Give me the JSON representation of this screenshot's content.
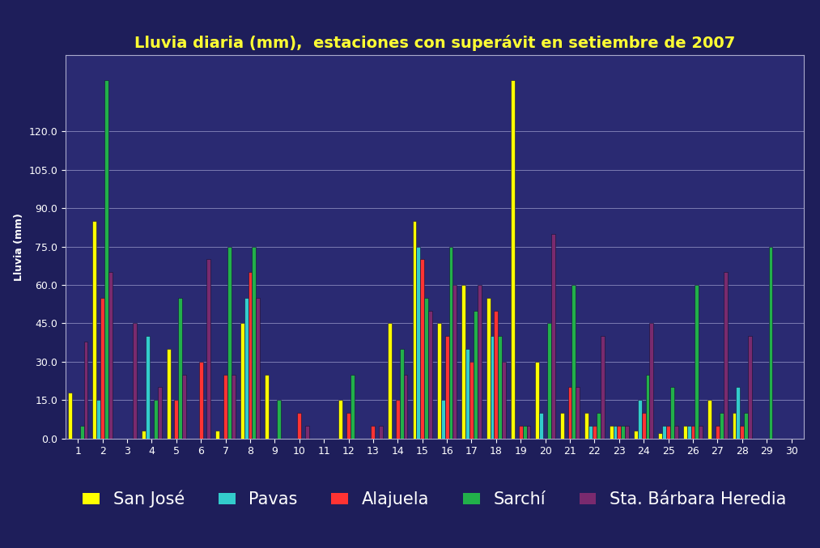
{
  "chart_data": {
    "type": "bar",
    "title": "Lluvia diaria (mm),  estaciones con superávit en setiembre de 2007",
    "y_label": "Lluvia (mm)",
    "categories": [
      "1",
      "2",
      "3",
      "4",
      "5",
      "6",
      "7",
      "8",
      "9",
      "10",
      "11",
      "12",
      "13",
      "14",
      "15",
      "16",
      "17",
      "18",
      "19",
      "20",
      "21",
      "22",
      "23",
      "24",
      "25",
      "26",
      "27",
      "28",
      "29",
      "30"
    ],
    "series": [
      {
        "name": "San José",
        "color": "#ffff00",
        "values": [
          18,
          85,
          0,
          3,
          35,
          0,
          3,
          45,
          25,
          0,
          0,
          15,
          0,
          45,
          85,
          45,
          60,
          55,
          140,
          30,
          10,
          10,
          5,
          3,
          2,
          5,
          15,
          10,
          0,
          0
        ]
      },
      {
        "name": "Pavas",
        "color": "#33cccc",
        "values": [
          0,
          15,
          0,
          40,
          0,
          0,
          0,
          55,
          0,
          0,
          0,
          0,
          0,
          0,
          75,
          15,
          35,
          40,
          0,
          10,
          0,
          5,
          5,
          15,
          5,
          5,
          0,
          20,
          0,
          0
        ]
      },
      {
        "name": "Alajuela",
        "color": "#ff3333",
        "values": [
          0,
          55,
          0,
          0,
          15,
          30,
          25,
          65,
          0,
          10,
          0,
          10,
          5,
          15,
          70,
          40,
          30,
          50,
          5,
          0,
          20,
          5,
          5,
          10,
          5,
          5,
          5,
          5,
          0,
          0
        ]
      },
      {
        "name": "Sarchí",
        "color": "#22b04a",
        "values": [
          5,
          140,
          0,
          15,
          55,
          0,
          75,
          75,
          15,
          0,
          0,
          25,
          0,
          35,
          55,
          75,
          50,
          40,
          5,
          45,
          60,
          10,
          5,
          25,
          20,
          60,
          10,
          10,
          75,
          0
        ]
      },
      {
        "name": "Sta. Bárbara Heredia",
        "color": "#7a2a6e",
        "values": [
          38,
          65,
          45,
          20,
          25,
          70,
          25,
          55,
          0,
          5,
          0,
          0,
          5,
          25,
          50,
          60,
          60,
          30,
          5,
          80,
          20,
          40,
          5,
          45,
          5,
          5,
          65,
          40,
          0,
          0
        ]
      }
    ],
    "ylim": [
      0,
      150
    ],
    "yticks": [
      {
        "value": 0,
        "label": "0.0"
      },
      {
        "value": 15,
        "label": "15.0"
      },
      {
        "value": 30,
        "label": "30.0"
      },
      {
        "value": 45,
        "label": "45.0"
      },
      {
        "value": 60,
        "label": "60.0"
      },
      {
        "value": 75,
        "label": "75.0"
      },
      {
        "value": 90,
        "label": "90.0"
      },
      {
        "value": 105,
        "label": "105.0"
      },
      {
        "value": 120,
        "label": "120.0"
      }
    ],
    "grid": true,
    "legend": "lower center"
  }
}
